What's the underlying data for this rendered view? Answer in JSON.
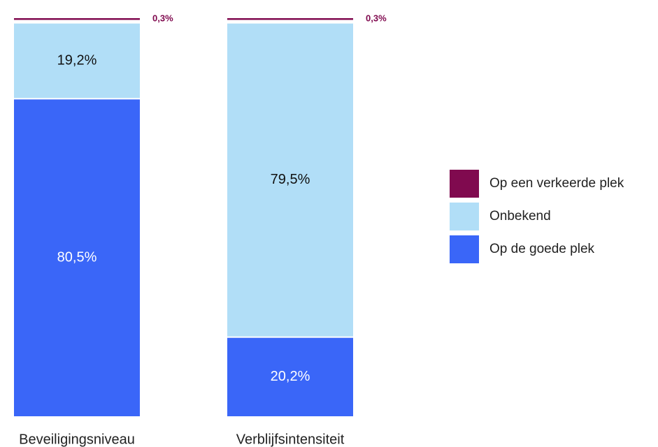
{
  "chart_data": {
    "type": "stacked-bar",
    "categories": [
      "Beveiligingsniveau",
      "Verblijfsintensiteit"
    ],
    "series": [
      {
        "name": "Op de goede plek",
        "color": "#3a66f8",
        "values": [
          80.5,
          20.2
        ],
        "value_labels": [
          "80,5%",
          "20,2%"
        ]
      },
      {
        "name": "Onbekend",
        "color": "#b1def7",
        "values": [
          19.2,
          79.5
        ],
        "value_labels": [
          "19,2%",
          "79,5%"
        ]
      },
      {
        "name": "Op een verkeerde plek",
        "color": "#800a4f",
        "values": [
          0.3,
          0.3
        ],
        "value_labels": [
          "0,3%",
          "0,3%"
        ]
      }
    ],
    "legend": "right"
  }
}
